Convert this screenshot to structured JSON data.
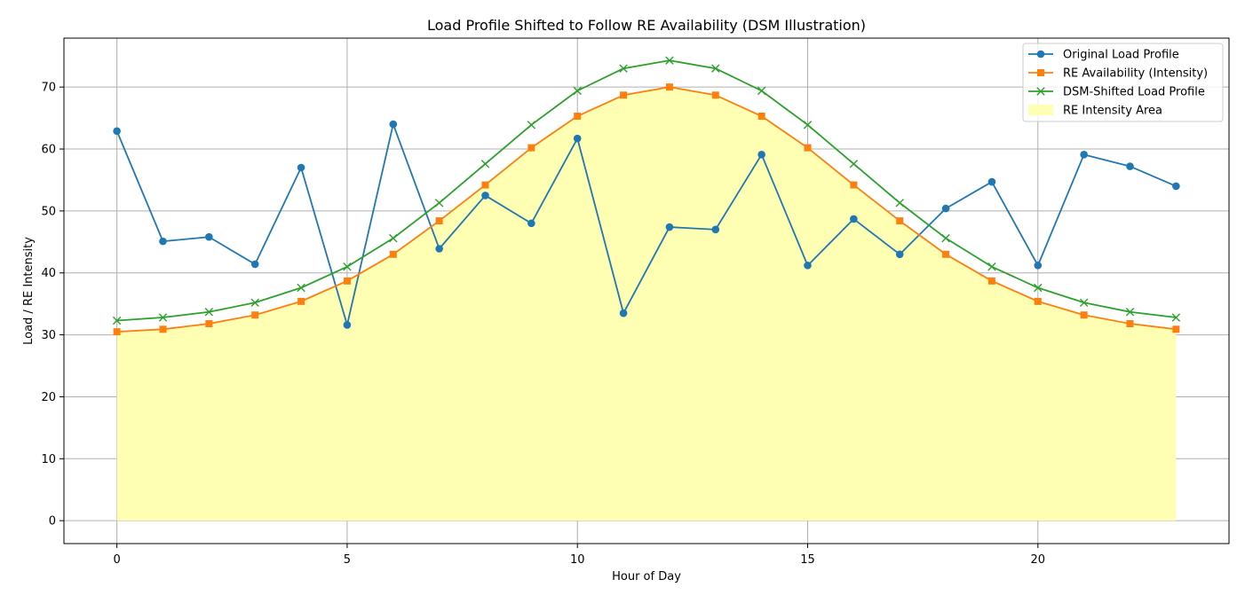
{
  "chart_data": {
    "type": "line",
    "title": "Load Profile Shifted to Follow RE Availability (DSM Illustration)",
    "xlabel": "Hour of Day",
    "ylabel": "Load / RE Intensity",
    "xlim": [
      -1.15,
      24.15
    ],
    "ylim": [
      -3.7,
      77.9
    ],
    "xticks": [
      0,
      5,
      10,
      15,
      20
    ],
    "yticks": [
      0,
      10,
      20,
      30,
      40,
      50,
      60,
      70
    ],
    "grid": true,
    "legend_position": "top-right",
    "x": [
      0,
      1,
      2,
      3,
      4,
      5,
      6,
      7,
      8,
      9,
      10,
      11,
      12,
      13,
      14,
      15,
      16,
      17,
      18,
      19,
      20,
      21,
      22,
      23
    ],
    "series": [
      {
        "name": "Original Load Profile",
        "color": "#1f77b4",
        "marker": "circle",
        "values": [
          62.9,
          45.1,
          45.8,
          41.4,
          57.0,
          31.6,
          64.0,
          43.9,
          52.5,
          48.0,
          61.7,
          33.5,
          47.4,
          47.0,
          59.1,
          41.2,
          48.7,
          43.0,
          50.4,
          54.7,
          41.2,
          59.1,
          57.2,
          54.0
        ]
      },
      {
        "name": "RE Availability (Intensity)",
        "color": "#ff7f0e",
        "marker": "square",
        "values": [
          30.5,
          30.9,
          31.8,
          33.2,
          35.4,
          38.7,
          43.0,
          48.4,
          54.2,
          60.2,
          65.3,
          68.7,
          70.0,
          68.7,
          65.3,
          60.2,
          54.2,
          48.4,
          43.0,
          38.7,
          35.4,
          33.2,
          31.8,
          30.9
        ]
      },
      {
        "name": "DSM-Shifted Load Profile",
        "color": "#2ca02c",
        "marker": "x",
        "values": [
          32.3,
          32.8,
          33.7,
          35.2,
          37.6,
          41.0,
          45.6,
          51.3,
          57.6,
          63.9,
          69.4,
          73.0,
          74.3,
          73.0,
          69.4,
          63.9,
          57.6,
          51.3,
          45.6,
          41.0,
          37.6,
          35.2,
          33.7,
          32.8
        ]
      }
    ],
    "area": {
      "name": "RE Intensity Area",
      "color": "#ffffb3",
      "source_series": 1
    },
    "colors": {
      "axes_edge": "#000000",
      "grid": "#b0b0b0"
    }
  }
}
